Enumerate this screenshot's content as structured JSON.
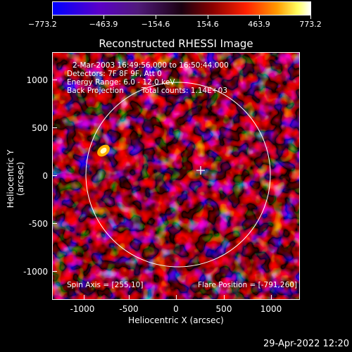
{
  "colorbar": {
    "ticks": [
      "−773.2",
      "−463.9",
      "−154.6",
      "154.6",
      "463.9",
      "773.2"
    ],
    "min": -773.2,
    "max": 773.2
  },
  "title": "Reconstructed RHESSI Image",
  "annotations": {
    "time_range": "2-Mar-2003 16:49:56.000 to 16:50:44.000",
    "detectors": "Detectors: 7F 8F 9F, Att 0",
    "energy_range": "Energy Range: 6.0 - 12.0 keV",
    "method": "Back Projection",
    "total_counts": "Total counts: 1.14E+03",
    "spin_axis": "Spin Axis = [255,10]",
    "flare_position": "Flare Position = [-791,260]"
  },
  "axes": {
    "xlabel": "Heliocentric X (arcsec)",
    "ylabel": "Heliocentric Y (arcsec)",
    "xticks": [
      "-1000",
      "-500",
      "0",
      "500",
      "1000"
    ],
    "yticks": [
      "1000",
      "500",
      "0",
      "-500",
      "-1000"
    ]
  },
  "timestamp": "29-Apr-2022 12:20",
  "colors": {
    "background": "#000000",
    "solar_limb": "#ffffff",
    "marker": "#ffffff"
  }
}
